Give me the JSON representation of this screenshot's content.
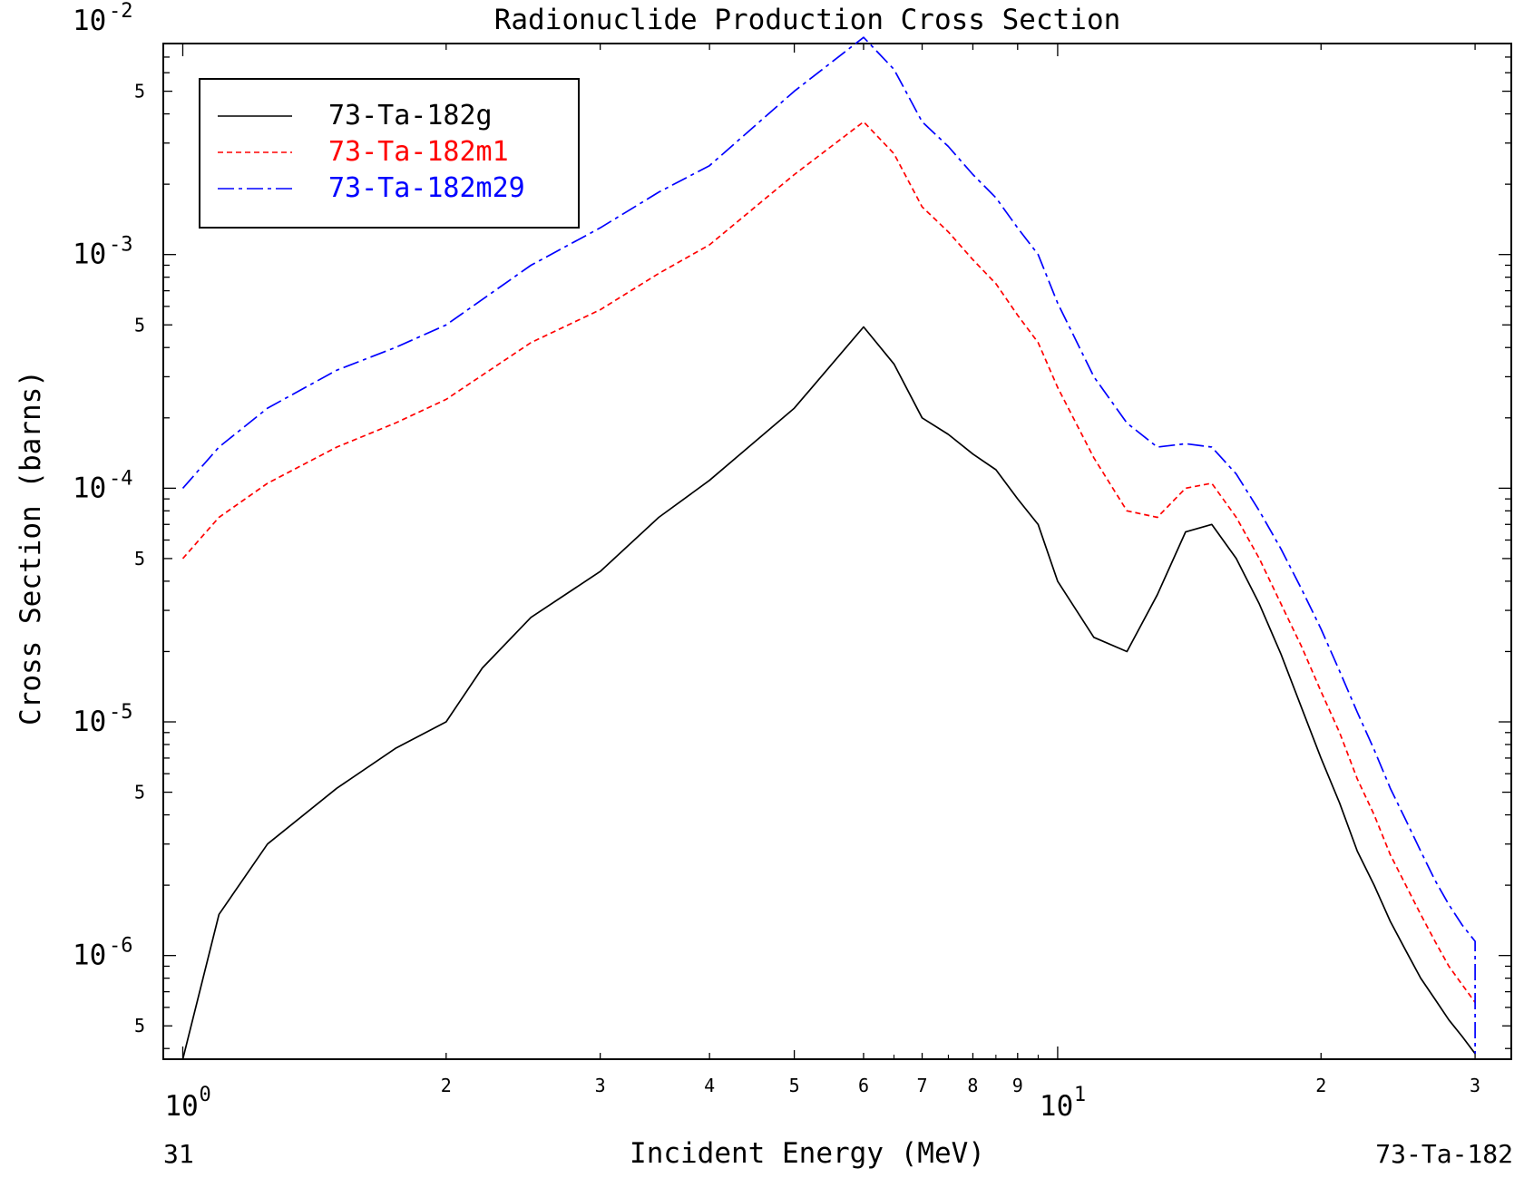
{
  "chart_data": {
    "type": "line",
    "title": "Radionuclide Production Cross Section",
    "xlabel": "Incident Energy (MeV)",
    "ylabel": "Cross Section (barns)",
    "xscale": "log",
    "yscale": "log",
    "xlim": [
      0.95,
      33
    ],
    "ylim": [
      3.6e-07,
      0.008
    ],
    "grid": false,
    "legend_position": "top-left",
    "footer_left": "31",
    "footer_right": "73-Ta-182",
    "x_major_ticks": [
      {
        "value": 1,
        "label": "10",
        "exponent": "0"
      },
      {
        "value": 10,
        "label": "10",
        "exponent": "1"
      }
    ],
    "x_minor_ticks": [
      {
        "value": 2,
        "label": "2"
      },
      {
        "value": 3,
        "label": "3"
      },
      {
        "value": 4,
        "label": "4"
      },
      {
        "value": 5,
        "label": "5"
      },
      {
        "value": 6,
        "label": "6"
      },
      {
        "value": 7,
        "label": "7"
      },
      {
        "value": 8,
        "label": "8"
      },
      {
        "value": 9,
        "label": "9"
      },
      {
        "value": 20,
        "label": "2"
      },
      {
        "value": 30,
        "label": "3"
      }
    ],
    "y_major_ticks": [
      {
        "value": 1e-06,
        "label": "10",
        "exponent": "-6"
      },
      {
        "value": 1e-05,
        "label": "10",
        "exponent": "-5"
      },
      {
        "value": 0.0001,
        "label": "10",
        "exponent": "-4"
      },
      {
        "value": 0.001,
        "label": "10",
        "exponent": "-3"
      },
      {
        "value": 0.01,
        "label": "10",
        "exponent": "-2"
      }
    ],
    "y_minor_ticks": [
      {
        "value": 5e-07,
        "label": "5"
      },
      {
        "value": 5e-06,
        "label": "5"
      },
      {
        "value": 5e-05,
        "label": "5"
      },
      {
        "value": 0.0005,
        "label": "5"
      },
      {
        "value": 0.005,
        "label": "5"
      }
    ],
    "series": [
      {
        "name": "73-Ta-182g",
        "color": "#000000",
        "dash": "solid",
        "x": [
          1.0,
          1.1,
          1.25,
          1.5,
          1.75,
          2.0,
          2.2,
          2.5,
          3.0,
          3.5,
          4.0,
          5.0,
          6.0,
          6.5,
          7.0,
          7.5,
          8.0,
          8.5,
          9.0,
          9.5,
          10.0,
          11.0,
          12.0,
          13.0,
          14.0,
          15.0,
          16.0,
          17.0,
          18.0,
          19.0,
          20.0,
          21.0,
          22.0,
          23.0,
          24.0,
          25.0,
          26.0,
          27.0,
          28.0,
          29.0,
          30.0
        ],
        "y": [
          3.6e-07,
          1.5e-06,
          3e-06,
          5.2e-06,
          7.7e-06,
          1e-05,
          1.7e-05,
          2.8e-05,
          4.4e-05,
          7.5e-05,
          0.000108,
          0.00022,
          0.00049,
          0.00034,
          0.0002,
          0.00017,
          0.00014,
          0.00012,
          9e-05,
          7e-05,
          4e-05,
          2.3e-05,
          2e-05,
          3.5e-05,
          6.5e-05,
          7e-05,
          5e-05,
          3.2e-05,
          1.95e-05,
          1.15e-05,
          7e-06,
          4.5e-06,
          2.8e-06,
          2e-06,
          1.4e-06,
          1.05e-06,
          8e-07,
          6.5e-07,
          5.3e-07,
          4.5e-07,
          3.8e-07
        ]
      },
      {
        "name": "73-Ta-182m1",
        "color": "#ff0000",
        "dash": "dashed",
        "x": [
          1.0,
          1.1,
          1.25,
          1.5,
          1.75,
          2.0,
          2.5,
          3.0,
          3.5,
          4.0,
          5.0,
          6.0,
          6.5,
          7.0,
          7.5,
          8.0,
          8.5,
          9.0,
          9.5,
          10.0,
          11.0,
          12.0,
          13.0,
          14.0,
          15.0,
          16.0,
          17.0,
          18.0,
          19.0,
          20.0,
          21.0,
          22.0,
          23.0,
          24.0,
          25.0,
          26.0,
          27.0,
          28.0,
          29.0,
          30.0
        ],
        "y": [
          5e-05,
          7.5e-05,
          0.000105,
          0.00015,
          0.00019,
          0.00024,
          0.00042,
          0.00058,
          0.00083,
          0.0011,
          0.0022,
          0.0037,
          0.0027,
          0.0016,
          0.00125,
          0.00095,
          0.00075,
          0.00055,
          0.00042,
          0.00027,
          0.000135,
          8e-05,
          7.5e-05,
          0.0001,
          0.000105,
          7.5e-05,
          5e-05,
          3.2e-05,
          2.1e-05,
          1.35e-05,
          9e-06,
          5.7e-06,
          4e-06,
          2.7e-06,
          2e-06,
          1.5e-06,
          1.15e-06,
          9e-07,
          7.5e-07,
          6.3e-07
        ]
      },
      {
        "name": "73-Ta-182m29",
        "color": "#0000ff",
        "dash": "dashdot",
        "x": [
          1.0,
          1.1,
          1.25,
          1.5,
          1.75,
          2.0,
          2.5,
          3.0,
          3.5,
          4.0,
          5.0,
          6.0,
          6.5,
          7.0,
          7.5,
          8.0,
          8.5,
          9.0,
          9.5,
          10.0,
          11.0,
          12.0,
          13.0,
          14.0,
          15.0,
          16.0,
          17.0,
          18.0,
          19.0,
          20.0,
          21.0,
          22.0,
          23.0,
          24.0,
          25.0,
          26.0,
          27.0,
          28.0,
          29.0,
          30.0,
          30.0
        ],
        "y": [
          0.0001,
          0.00015,
          0.00022,
          0.00032,
          0.0004,
          0.0005,
          0.0009,
          0.0013,
          0.00185,
          0.0024,
          0.005,
          0.0085,
          0.0062,
          0.0037,
          0.0029,
          0.0022,
          0.00175,
          0.0013,
          0.001,
          0.00062,
          0.0003,
          0.00019,
          0.00015,
          0.000155,
          0.00015,
          0.000115,
          8e-05,
          5.5e-05,
          3.7e-05,
          2.5e-05,
          1.65e-05,
          1.1e-05,
          7.6e-06,
          5.2e-06,
          3.8e-06,
          2.8e-06,
          2.1e-06,
          1.65e-06,
          1.35e-06,
          1.15e-06,
          3.8e-07
        ]
      }
    ]
  }
}
